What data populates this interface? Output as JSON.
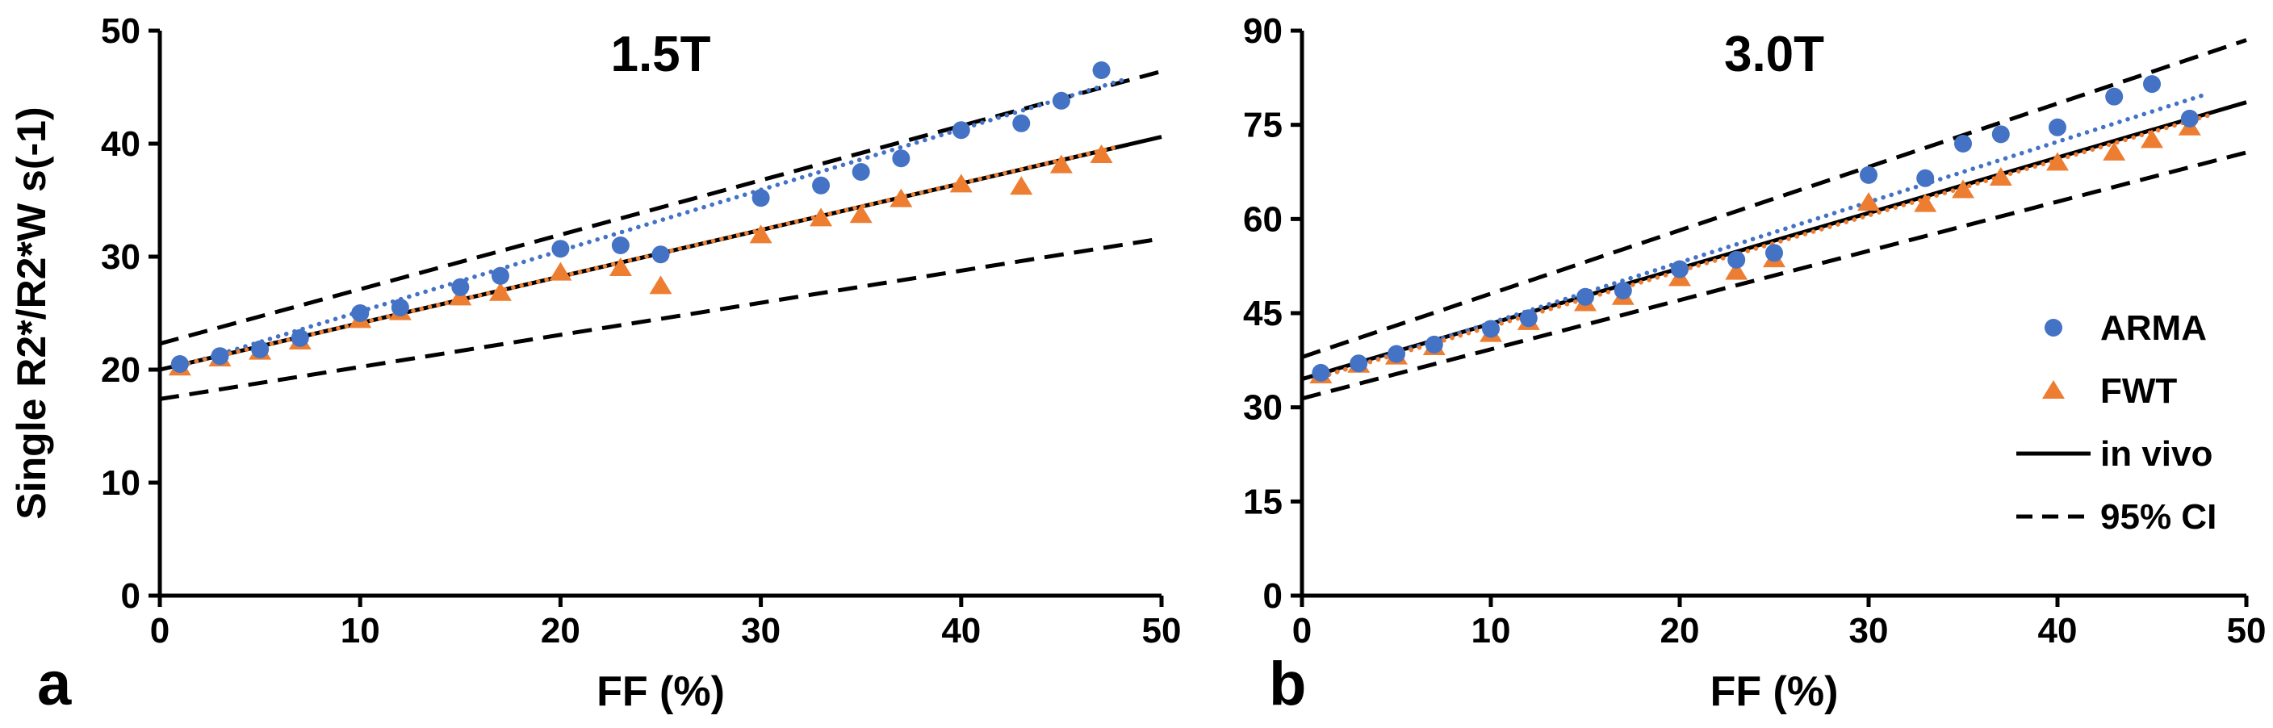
{
  "chart_data": [
    {
      "type": "scatter",
      "title": "1.5T",
      "corner_label": "a",
      "xlabel": "FF (%)",
      "ylabel": "Single R2*/R2*W s(-1)",
      "xlim": [
        0,
        50
      ],
      "ylim": [
        0,
        50
      ],
      "xticks": [
        0,
        10,
        20,
        30,
        40,
        50
      ],
      "yticks": [
        0,
        10,
        20,
        30,
        40,
        50
      ],
      "x": [
        1,
        3,
        5,
        7,
        10,
        12,
        15,
        17,
        20,
        23,
        25,
        30,
        33,
        35,
        37,
        40,
        43,
        45,
        47
      ],
      "series": [
        {
          "name": "ARMA",
          "marker": "circle",
          "color": "#4472C4",
          "values": [
            20.5,
            21.2,
            21.8,
            22.8,
            25.0,
            25.5,
            27.3,
            28.3,
            30.7,
            31.0,
            30.2,
            35.2,
            36.3,
            37.5,
            38.7,
            41.2,
            41.8,
            43.8,
            46.5
          ],
          "trend": {
            "x": [
              1,
              48
            ],
            "y": [
              20.3,
              45.6
            ],
            "style": "dotted"
          }
        },
        {
          "name": "FWT",
          "marker": "triangle",
          "color": "#ED7D31",
          "values": [
            20.2,
            21.0,
            21.6,
            22.5,
            24.4,
            25.1,
            26.4,
            26.8,
            28.6,
            29.0,
            27.4,
            31.9,
            33.4,
            33.7,
            35.1,
            36.4,
            36.2,
            38.1,
            39.0
          ],
          "trend": {
            "x": [
              1,
              48
            ],
            "y": [
              20.4,
              39.8
            ],
            "style": "dotted"
          }
        }
      ],
      "lines": [
        {
          "name": "in vivo",
          "style": "solid",
          "color": "#000000",
          "x": [
            0,
            50
          ],
          "y": [
            20.0,
            40.6
          ]
        },
        {
          "name": "95% CI upper",
          "style": "dashed",
          "color": "#000000",
          "x": [
            0,
            50
          ],
          "y": [
            22.3,
            46.4
          ]
        },
        {
          "name": "95% CI lower",
          "style": "dashed",
          "color": "#000000",
          "x": [
            0,
            50
          ],
          "y": [
            17.4,
            31.6
          ]
        }
      ],
      "legend": null
    },
    {
      "type": "scatter",
      "title": "3.0T",
      "corner_label": "b",
      "xlabel": "FF (%)",
      "ylabel": "",
      "xlim": [
        0,
        50
      ],
      "ylim": [
        0,
        90
      ],
      "xticks": [
        0,
        10,
        20,
        30,
        40,
        50
      ],
      "yticks": [
        0,
        15,
        30,
        45,
        60,
        75,
        90
      ],
      "x": [
        1,
        3,
        5,
        7,
        10,
        12,
        15,
        17,
        20,
        23,
        25,
        30,
        33,
        35,
        37,
        40,
        43,
        45,
        47
      ],
      "series": [
        {
          "name": "ARMA",
          "marker": "circle",
          "color": "#4472C4",
          "values": [
            35.5,
            37.0,
            38.5,
            40.0,
            42.5,
            44.2,
            47.6,
            48.6,
            52.0,
            53.5,
            54.6,
            67.0,
            66.5,
            72.0,
            73.5,
            74.6,
            79.5,
            81.5,
            76.0
          ],
          "trend": {
            "x": [
              1,
              48
            ],
            "y": [
              34.8,
              80.0
            ],
            "style": "dotted"
          }
        },
        {
          "name": "FWT",
          "marker": "triangle",
          "color": "#ED7D31",
          "values": [
            35.1,
            36.8,
            38.1,
            39.6,
            41.7,
            43.6,
            46.6,
            47.6,
            50.6,
            51.6,
            53.6,
            62.6,
            62.4,
            64.6,
            66.6,
            69.0,
            70.6,
            72.6,
            74.6
          ],
          "trend": {
            "x": [
              1,
              48
            ],
            "y": [
              34.9,
              76.5
            ],
            "style": "dotted"
          }
        }
      ],
      "lines": [
        {
          "name": "in vivo",
          "style": "solid",
          "color": "#000000",
          "x": [
            0,
            50
          ],
          "y": [
            34.5,
            78.6
          ]
        },
        {
          "name": "95% CI upper",
          "style": "dashed",
          "color": "#000000",
          "x": [
            0,
            50
          ],
          "y": [
            38.0,
            88.5
          ]
        },
        {
          "name": "95% CI lower",
          "style": "dashed",
          "color": "#000000",
          "x": [
            0,
            50
          ],
          "y": [
            31.4,
            70.6
          ]
        }
      ],
      "legend": {
        "position": "right",
        "items": [
          {
            "label": "ARMA",
            "swatch": "circle",
            "color": "#4472C4"
          },
          {
            "label": "FWT",
            "swatch": "triangle",
            "color": "#ED7D31"
          },
          {
            "label": "in vivo",
            "swatch": "line-solid",
            "color": "#000000"
          },
          {
            "label": "95% CI",
            "swatch": "line-dashed",
            "color": "#000000"
          }
        ]
      }
    }
  ],
  "colors": {
    "arma": "#4472C4",
    "fwt": "#ED7D31",
    "axis": "#000000",
    "background": "#FFFFFF"
  }
}
